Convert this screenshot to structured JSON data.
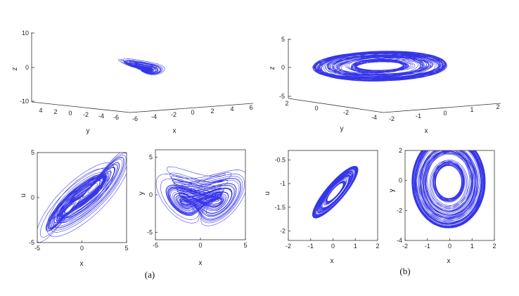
{
  "colors": {
    "trajectory": "#1f1fe6",
    "axis": "#333333"
  },
  "captions": [
    "(a)",
    "(b)"
  ],
  "chart_data": [
    {
      "id": "a-3d",
      "type": "line",
      "kind": "3d-attractor",
      "xlabel": "x",
      "ylabel": "y",
      "zlabel": "z",
      "xticks": [
        "-6",
        "-4",
        "-2",
        "0",
        "2",
        "4",
        "6"
      ],
      "yticks": [
        "4",
        "2",
        "0",
        "-2",
        "-4",
        "-6"
      ],
      "zticks": [
        "10",
        "0",
        "-10"
      ],
      "xlim": [
        -6,
        6
      ],
      "ylim": [
        -6,
        4
      ],
      "zlim": [
        -10,
        10
      ]
    },
    {
      "id": "b-3d",
      "type": "line",
      "kind": "3d-attractor",
      "xlabel": "x",
      "ylabel": "y",
      "zlabel": "z",
      "xticks": [
        "-2",
        "-1",
        "0",
        "1",
        "2"
      ],
      "yticks": [
        "2",
        "0",
        "-2",
        "-4"
      ],
      "zticks": [
        "5",
        "0",
        "-5"
      ],
      "xlim": [
        -2,
        2
      ],
      "ylim": [
        -4,
        2
      ],
      "zlim": [
        -5,
        5
      ]
    },
    {
      "id": "a-xu",
      "type": "line",
      "kind": "phase-portrait",
      "xlabel": "x",
      "ylabel": "u",
      "xlim": [
        -5,
        5
      ],
      "ylim": [
        -5,
        5
      ],
      "xticks": [
        -5,
        0,
        5
      ],
      "yticks": [
        -5,
        0,
        5
      ]
    },
    {
      "id": "a-xy",
      "type": "line",
      "kind": "phase-portrait",
      "xlabel": "x",
      "ylabel": "y",
      "xlim": [
        -5,
        5
      ],
      "ylim": [
        -6,
        6
      ],
      "xticks": [
        -5,
        0,
        5
      ],
      "yticks": [
        -5,
        0,
        5
      ]
    },
    {
      "id": "b-xu",
      "type": "line",
      "kind": "phase-portrait",
      "xlabel": "x",
      "ylabel": "u",
      "xlim": [
        -2,
        2
      ],
      "ylim": [
        -2.2,
        -0.3
      ],
      "xticks": [
        -2,
        -1,
        0,
        1,
        2
      ],
      "yticks": [
        -0.5,
        -1,
        -1.5,
        -2
      ]
    },
    {
      "id": "b-xy",
      "type": "line",
      "kind": "phase-portrait",
      "xlabel": "x",
      "ylabel": "y",
      "xlim": [
        -2,
        2
      ],
      "ylim": [
        -4,
        2
      ],
      "xticks": [
        -2,
        -1,
        0,
        1,
        2
      ],
      "yticks": [
        2,
        0,
        -2,
        -4
      ]
    }
  ]
}
